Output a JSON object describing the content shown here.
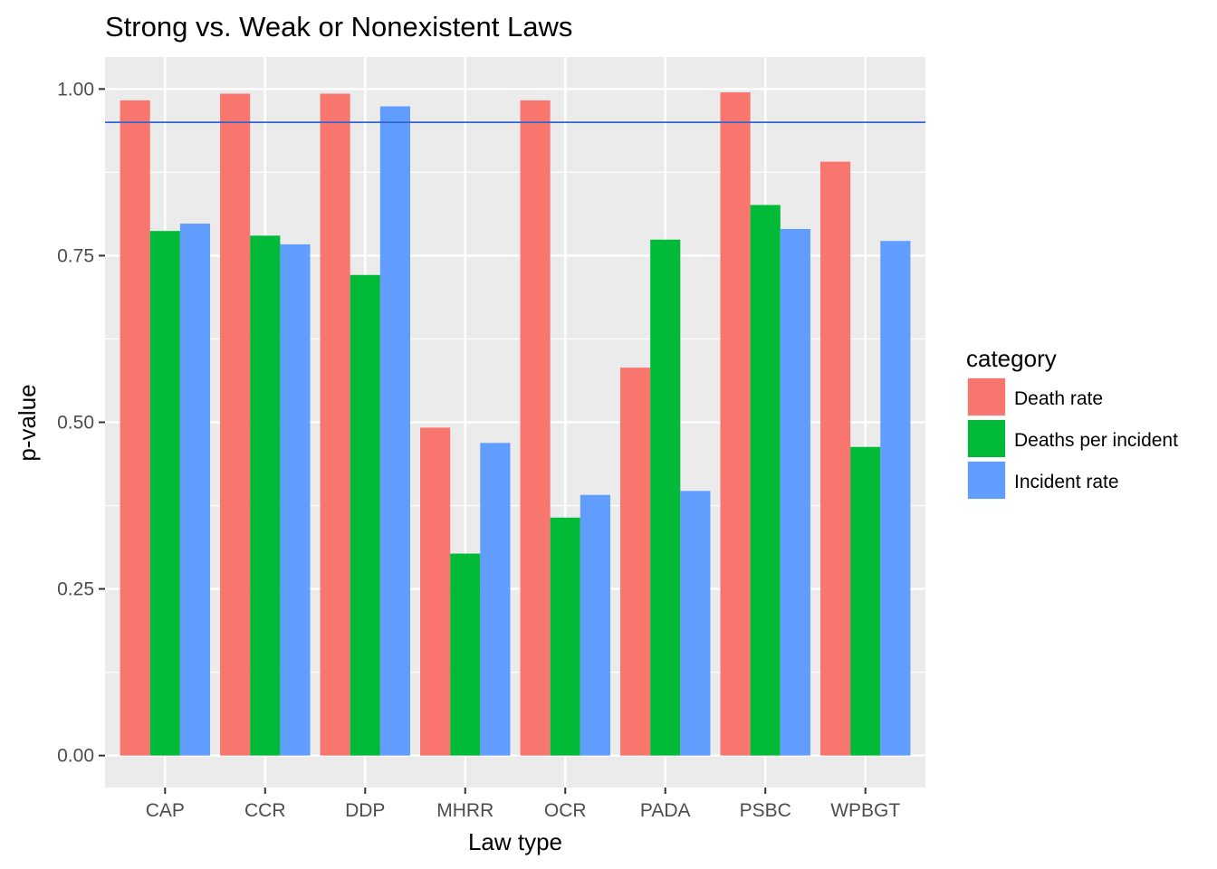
{
  "chart_data": {
    "type": "bar",
    "title": "Strong vs. Weak or Nonexistent Laws",
    "xlabel": "Law type",
    "ylabel": "p-value",
    "categories": [
      "CAP",
      "CCR",
      "DDP",
      "MHRR",
      "OCR",
      "PADA",
      "PSBC",
      "WPBGT"
    ],
    "series": [
      {
        "name": "Death rate",
        "color": "#F8766D",
        "values": [
          0.983,
          0.993,
          0.993,
          0.492,
          0.983,
          0.582,
          0.995,
          0.891
        ]
      },
      {
        "name": "Deaths per incident",
        "color": "#00BA38",
        "values": [
          0.787,
          0.78,
          0.721,
          0.303,
          0.357,
          0.774,
          0.826,
          0.463
        ]
      },
      {
        "name": "Incident rate",
        "color": "#619CFF",
        "values": [
          0.798,
          0.767,
          0.974,
          0.469,
          0.391,
          0.397,
          0.79,
          0.772
        ]
      }
    ],
    "ylim": [
      -0.048,
      1.048
    ],
    "yticks": [
      0.0,
      0.25,
      0.5,
      0.75,
      1.0
    ],
    "ytick_labels": [
      "0.00",
      "0.25",
      "0.50",
      "0.75",
      "1.00"
    ],
    "reference_line": {
      "y": 0.95,
      "color": "#3366CC"
    },
    "legend": {
      "title": "category",
      "position": "right"
    },
    "grid": true,
    "panel_color": "#EBEBEB",
    "grid_color": "#FFFFFF"
  }
}
